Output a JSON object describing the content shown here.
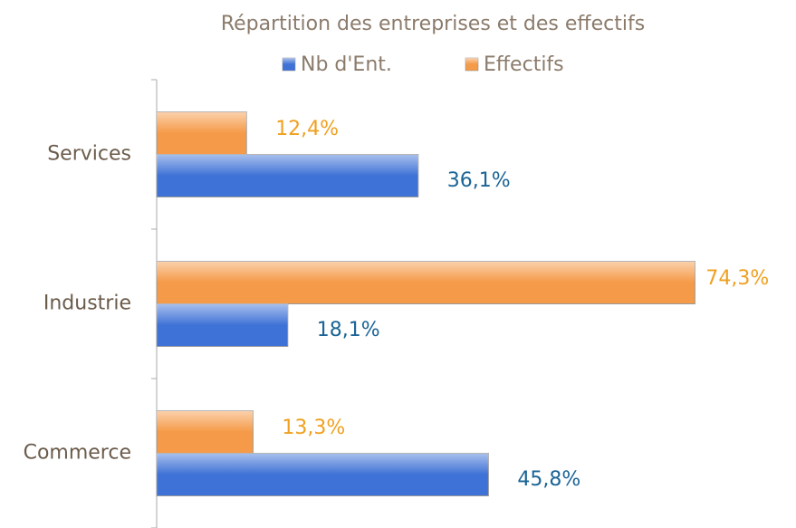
{
  "chart_data": {
    "type": "hbar",
    "title": "Répartition des entreprises et des effectifs",
    "categories": [
      "Services",
      "Industrie",
      "Commerce"
    ],
    "series": [
      {
        "name": "Nb d'Ent.",
        "color": "#3f72d6",
        "label_color": "#1a6496",
        "values": [
          36.1,
          18.1,
          45.8
        ],
        "value_labels": [
          "36,1%",
          "18,1%",
          "45,8%"
        ]
      },
      {
        "name": "Effectifs",
        "color": "#f59a48",
        "label_color": "#f0a020",
        "values": [
          12.4,
          74.3,
          13.3
        ],
        "value_labels": [
          "12,4%",
          "74,3%",
          "13,3%"
        ]
      }
    ],
    "xlim": [
      0,
      80
    ]
  }
}
